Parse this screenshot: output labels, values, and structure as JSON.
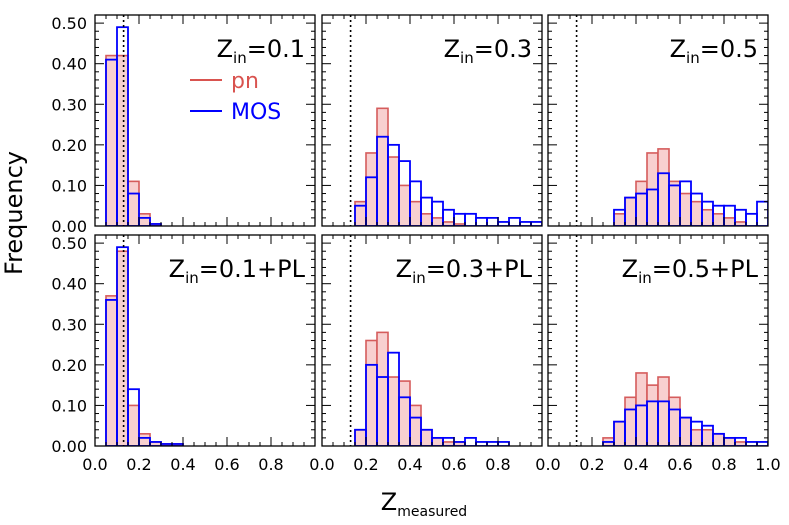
{
  "figure": {
    "ylabel": "Frequency",
    "xlabel_main": "Z",
    "xlabel_sub": "measured",
    "legend": [
      {
        "name": "pn",
        "color": "#d9534f"
      },
      {
        "name": "MOS",
        "color": "#0000ff"
      }
    ]
  },
  "colors": {
    "pn_edge": "#d55c5c",
    "pn_fill": "#f8d0d0",
    "mos_edge": "#0000ff",
    "reference_line": "#000000"
  },
  "chart_data": [
    {
      "type": "bar",
      "panel": "top-left",
      "label_main": "Z",
      "label_sub": "in",
      "label_rest": "=0.1",
      "show_legend": true,
      "xlim": [
        0.0,
        1.0
      ],
      "ylim": [
        0.0,
        0.52
      ],
      "bin_width": 0.05,
      "reference_x": 0.13,
      "pn_bins": [
        [
          0.05,
          0.42
        ],
        [
          0.1,
          0.42
        ],
        [
          0.15,
          0.11
        ],
        [
          0.2,
          0.03
        ],
        [
          0.25,
          0.005
        ]
      ],
      "mos_bins": [
        [
          0.05,
          0.41
        ],
        [
          0.1,
          0.49
        ],
        [
          0.15,
          0.08
        ],
        [
          0.2,
          0.02
        ],
        [
          0.25,
          0.005
        ]
      ],
      "xticks": [
        "0.0",
        "0.2",
        "0.4",
        "0.6",
        "0.8"
      ],
      "yticks": [
        "0.00",
        "0.10",
        "0.20",
        "0.30",
        "0.40",
        "0.50"
      ]
    },
    {
      "type": "bar",
      "panel": "top-middle",
      "label_main": "Z",
      "label_sub": "in",
      "label_rest": "=0.3",
      "show_legend": false,
      "xlim": [
        0.0,
        1.0
      ],
      "ylim": [
        0.0,
        0.52
      ],
      "bin_width": 0.05,
      "reference_x": 0.13,
      "pn_bins": [
        [
          0.15,
          0.06
        ],
        [
          0.2,
          0.18
        ],
        [
          0.25,
          0.29
        ],
        [
          0.3,
          0.17
        ],
        [
          0.35,
          0.1
        ],
        [
          0.4,
          0.06
        ],
        [
          0.45,
          0.03
        ],
        [
          0.5,
          0.02
        ],
        [
          0.55,
          0.01
        ],
        [
          0.6,
          0.005
        ]
      ],
      "mos_bins": [
        [
          0.15,
          0.05
        ],
        [
          0.2,
          0.12
        ],
        [
          0.25,
          0.22
        ],
        [
          0.3,
          0.2
        ],
        [
          0.35,
          0.16
        ],
        [
          0.4,
          0.11
        ],
        [
          0.45,
          0.07
        ],
        [
          0.5,
          0.06
        ],
        [
          0.55,
          0.04
        ],
        [
          0.6,
          0.03
        ],
        [
          0.65,
          0.03
        ],
        [
          0.7,
          0.02
        ],
        [
          0.75,
          0.02
        ],
        [
          0.8,
          0.01
        ],
        [
          0.85,
          0.02
        ],
        [
          0.9,
          0.01
        ],
        [
          0.95,
          0.01
        ]
      ],
      "xticks": [
        "0.0",
        "0.2",
        "0.4",
        "0.6",
        "0.8"
      ],
      "yticks": []
    },
    {
      "type": "bar",
      "panel": "top-right",
      "label_main": "Z",
      "label_sub": "in",
      "label_rest": "=0.5",
      "show_legend": false,
      "xlim": [
        0.0,
        1.0
      ],
      "ylim": [
        0.0,
        0.52
      ],
      "bin_width": 0.05,
      "reference_x": 0.13,
      "pn_bins": [
        [
          0.3,
          0.03
        ],
        [
          0.35,
          0.07
        ],
        [
          0.4,
          0.11
        ],
        [
          0.45,
          0.18
        ],
        [
          0.5,
          0.19
        ],
        [
          0.55,
          0.11
        ],
        [
          0.6,
          0.08
        ],
        [
          0.65,
          0.06
        ],
        [
          0.7,
          0.04
        ],
        [
          0.75,
          0.03
        ],
        [
          0.8,
          0.02
        ],
        [
          0.85,
          0.01
        ]
      ],
      "mos_bins": [
        [
          0.3,
          0.04
        ],
        [
          0.35,
          0.07
        ],
        [
          0.4,
          0.08
        ],
        [
          0.45,
          0.09
        ],
        [
          0.5,
          0.13
        ],
        [
          0.55,
          0.1
        ],
        [
          0.6,
          0.11
        ],
        [
          0.65,
          0.08
        ],
        [
          0.7,
          0.06
        ],
        [
          0.75,
          0.05
        ],
        [
          0.8,
          0.05
        ],
        [
          0.85,
          0.04
        ],
        [
          0.9,
          0.03
        ],
        [
          0.95,
          0.06
        ]
      ],
      "xticks": [
        "0.0",
        "0.2",
        "0.4",
        "0.6",
        "0.8",
        "1.0"
      ],
      "yticks": []
    },
    {
      "type": "bar",
      "panel": "bottom-left",
      "label_main": "Z",
      "label_sub": "in",
      "label_rest": "=0.1+PL",
      "show_legend": false,
      "xlim": [
        0.0,
        1.0
      ],
      "ylim": [
        0.0,
        0.52
      ],
      "bin_width": 0.05,
      "reference_x": 0.13,
      "pn_bins": [
        [
          0.05,
          0.37
        ],
        [
          0.1,
          0.48
        ],
        [
          0.15,
          0.1
        ],
        [
          0.2,
          0.03
        ],
        [
          0.25,
          0.01
        ],
        [
          0.3,
          0.005
        ],
        [
          0.35,
          0.005
        ]
      ],
      "mos_bins": [
        [
          0.05,
          0.36
        ],
        [
          0.1,
          0.49
        ],
        [
          0.15,
          0.14
        ],
        [
          0.2,
          0.02
        ],
        [
          0.25,
          0.01
        ],
        [
          0.3,
          0.005
        ],
        [
          0.35,
          0.005
        ]
      ],
      "xticks": [
        "0.0",
        "0.2",
        "0.4",
        "0.6",
        "0.8"
      ],
      "yticks": [
        "0.00",
        "0.10",
        "0.20",
        "0.30",
        "0.40",
        "0.50"
      ]
    },
    {
      "type": "bar",
      "panel": "bottom-middle",
      "label_main": "Z",
      "label_sub": "in",
      "label_rest": "=0.3+PL",
      "show_legend": false,
      "xlim": [
        0.0,
        1.0
      ],
      "ylim": [
        0.0,
        0.52
      ],
      "bin_width": 0.05,
      "reference_x": 0.13,
      "pn_bins": [
        [
          0.15,
          0.04
        ],
        [
          0.2,
          0.26
        ],
        [
          0.25,
          0.28
        ],
        [
          0.3,
          0.17
        ],
        [
          0.35,
          0.16
        ],
        [
          0.4,
          0.1
        ],
        [
          0.45,
          0.04
        ],
        [
          0.5,
          0.02
        ],
        [
          0.55,
          0.01
        ],
        [
          0.6,
          0.01
        ]
      ],
      "mos_bins": [
        [
          0.15,
          0.04
        ],
        [
          0.2,
          0.2
        ],
        [
          0.25,
          0.17
        ],
        [
          0.3,
          0.23
        ],
        [
          0.35,
          0.12
        ],
        [
          0.4,
          0.07
        ],
        [
          0.45,
          0.04
        ],
        [
          0.5,
          0.02
        ],
        [
          0.55,
          0.02
        ],
        [
          0.6,
          0.01
        ],
        [
          0.65,
          0.02
        ],
        [
          0.7,
          0.01
        ],
        [
          0.75,
          0.01
        ],
        [
          0.8,
          0.01
        ]
      ],
      "xticks": [
        "0.0",
        "0.2",
        "0.4",
        "0.6",
        "0.8"
      ],
      "yticks": []
    },
    {
      "type": "bar",
      "panel": "bottom-right",
      "label_main": "Z",
      "label_sub": "in",
      "label_rest": "=0.5+PL",
      "show_legend": false,
      "xlim": [
        0.0,
        1.0
      ],
      "ylim": [
        0.0,
        0.52
      ],
      "bin_width": 0.05,
      "reference_x": 0.13,
      "pn_bins": [
        [
          0.25,
          0.02
        ],
        [
          0.3,
          0.06
        ],
        [
          0.35,
          0.12
        ],
        [
          0.4,
          0.18
        ],
        [
          0.45,
          0.15
        ],
        [
          0.5,
          0.17
        ],
        [
          0.55,
          0.12
        ],
        [
          0.6,
          0.07
        ],
        [
          0.65,
          0.04
        ],
        [
          0.7,
          0.04
        ],
        [
          0.75,
          0.03
        ],
        [
          0.8,
          0.02
        ],
        [
          0.85,
          0.01
        ]
      ],
      "mos_bins": [
        [
          0.25,
          0.01
        ],
        [
          0.3,
          0.06
        ],
        [
          0.35,
          0.09
        ],
        [
          0.4,
          0.1
        ],
        [
          0.45,
          0.11
        ],
        [
          0.5,
          0.11
        ],
        [
          0.55,
          0.09
        ],
        [
          0.6,
          0.07
        ],
        [
          0.65,
          0.06
        ],
        [
          0.7,
          0.05
        ],
        [
          0.75,
          0.03
        ],
        [
          0.8,
          0.02
        ],
        [
          0.85,
          0.02
        ],
        [
          0.9,
          0.01
        ],
        [
          0.95,
          0.01
        ]
      ],
      "xticks": [
        "0.0",
        "0.2",
        "0.4",
        "0.6",
        "0.8",
        "1.0"
      ],
      "yticks": []
    }
  ]
}
